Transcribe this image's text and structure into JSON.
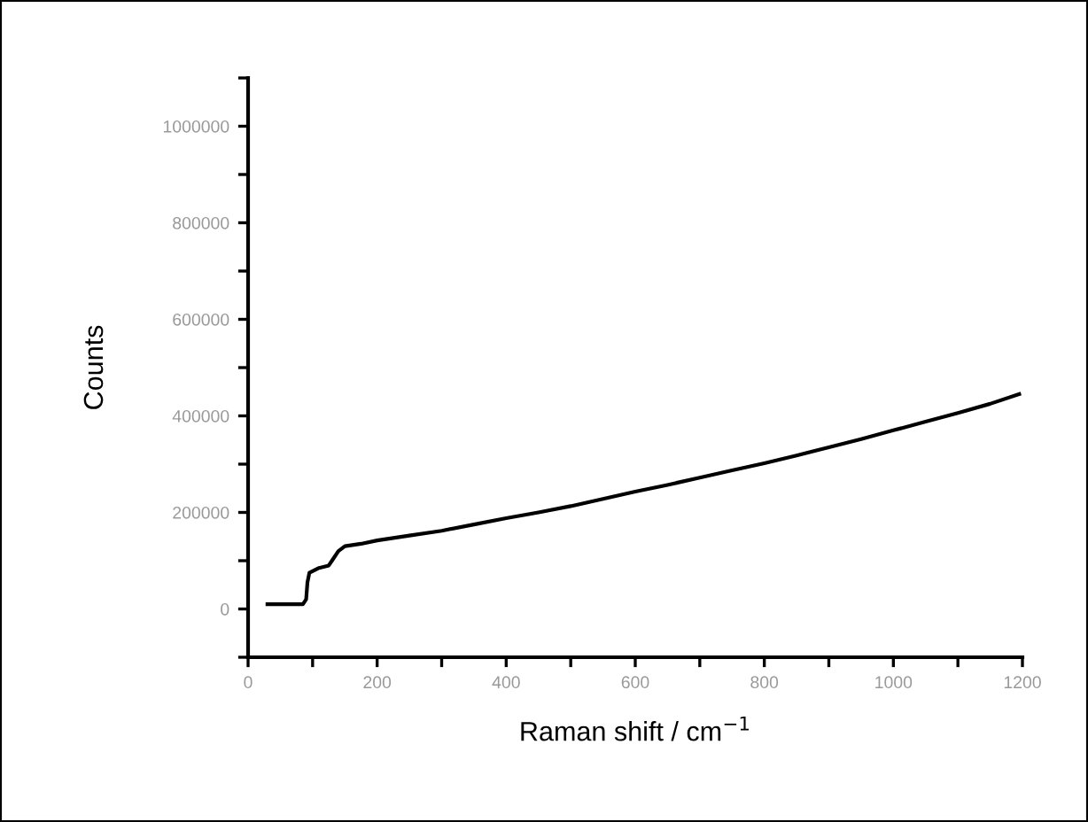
{
  "chart_data": {
    "type": "line",
    "xlabel": "Raman shift / cm$^{−1}$",
    "ylabel": "Counts",
    "x": [
      30,
      85,
      90,
      92,
      95,
      110,
      125,
      130,
      140,
      150,
      175,
      200,
      250,
      300,
      350,
      400,
      450,
      500,
      550,
      600,
      650,
      700,
      750,
      800,
      850,
      900,
      950,
      1000,
      1050,
      1100,
      1150,
      1195
    ],
    "series": [
      {
        "color": "#000000",
        "values": [
          10000,
          10000,
          20000,
          55000,
          75000,
          85000,
          90000,
          100000,
          120000,
          130000,
          135000,
          142000,
          152000,
          162000,
          175000,
          188000,
          200000,
          213000,
          228000,
          243000,
          257000,
          272000,
          287000,
          302000,
          318000,
          335000,
          352000,
          370000,
          388000,
          406000,
          425000,
          445000
        ]
      }
    ],
    "xlim": [
      0,
      1200
    ],
    "ylim": [
      -100000,
      1100000
    ],
    "xticks": [
      0,
      {
        "value": 100,
        "label": null
      },
      200,
      {
        "value": 300,
        "label": null
      },
      400,
      {
        "value": 500,
        "label": null
      },
      600,
      {
        "value": 700,
        "label": null
      },
      800,
      {
        "value": 900,
        "label": null
      },
      1000,
      {
        "value": 1100,
        "label": null
      },
      1200
    ],
    "yticks": [
      {
        "value": -100000,
        "label": null
      },
      0,
      {
        "value": 100000,
        "label": null
      },
      200000,
      {
        "value": 300000,
        "label": null
      },
      400000,
      {
        "value": 500000,
        "label": null
      },
      600000,
      {
        "value": 700000,
        "label": null
      },
      800000,
      {
        "value": 900000,
        "label": null
      },
      1000000,
      {
        "value": 1100000,
        "label": null
      }
    ],
    "grid": false,
    "legend": false,
    "marker": "none",
    "line_style": "solid"
  }
}
